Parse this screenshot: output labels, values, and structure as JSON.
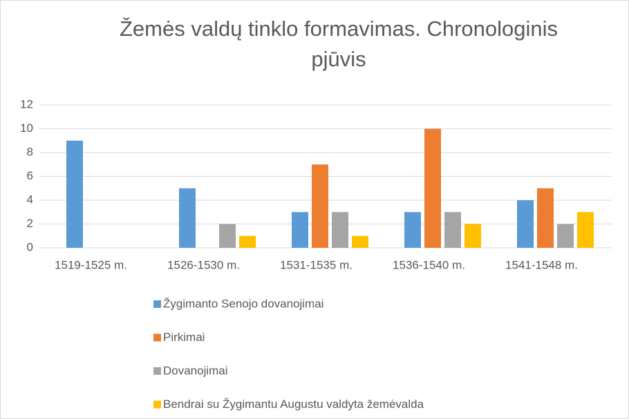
{
  "chart_data": {
    "type": "bar",
    "title": "Žemės valdų tinklo formavimas. Chronologinis pjūvis",
    "categories": [
      "1519-1525 m.",
      "1526-1530 m.",
      "1531-1535 m.",
      "1536-1540 m.",
      "1541-1548 m."
    ],
    "series": [
      {
        "name": "Žygimanto Senojo dovanojimai",
        "color": "#5b9bd5",
        "values": [
          9,
          5,
          3,
          3,
          4
        ]
      },
      {
        "name": "Pirkimai",
        "color": "#ed7d31",
        "values": [
          0,
          0,
          7,
          10,
          5
        ]
      },
      {
        "name": "Dovanojimai",
        "color": "#a5a5a5",
        "values": [
          0,
          2,
          3,
          3,
          2
        ]
      },
      {
        "name": "Bendrai su Žygimantu Augustu valdyta žemėvalda",
        "color": "#ffc000",
        "values": [
          0,
          1,
          1,
          2,
          3
        ]
      }
    ],
    "ylim": [
      0,
      12
    ],
    "yticks": [
      0,
      2,
      4,
      6,
      8,
      10,
      12
    ],
    "grid": true,
    "legend": "bottom"
  }
}
